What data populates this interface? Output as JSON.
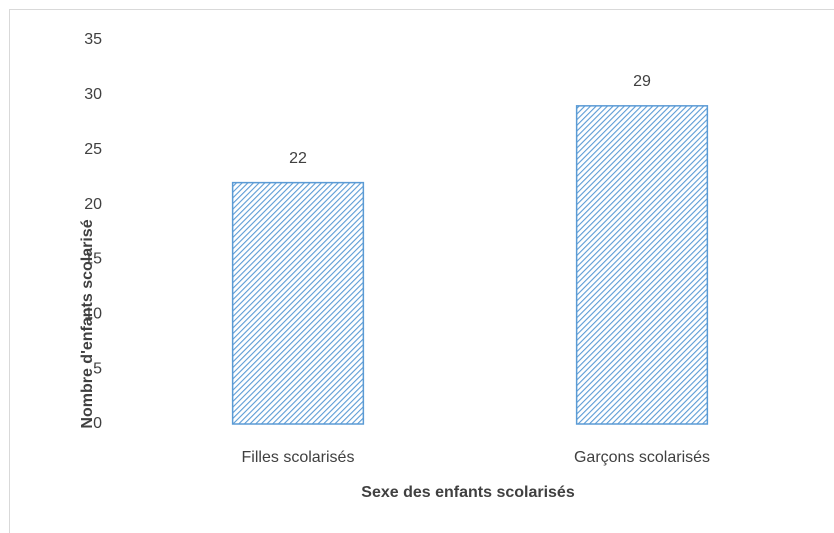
{
  "chart_data": {
    "type": "bar",
    "categories": [
      "Filles scolarisés",
      "Garçons scolarisés"
    ],
    "values": [
      22,
      29
    ],
    "color": "#5b9bd5",
    "xlabel": "Sexe des enfants scolarisés",
    "ylabel": "Nombre d'enfants scolarisé",
    "ylim": [
      0,
      35
    ],
    "yticks": [
      0,
      5,
      10,
      15,
      20,
      25,
      30,
      35
    ],
    "grid": false
  }
}
